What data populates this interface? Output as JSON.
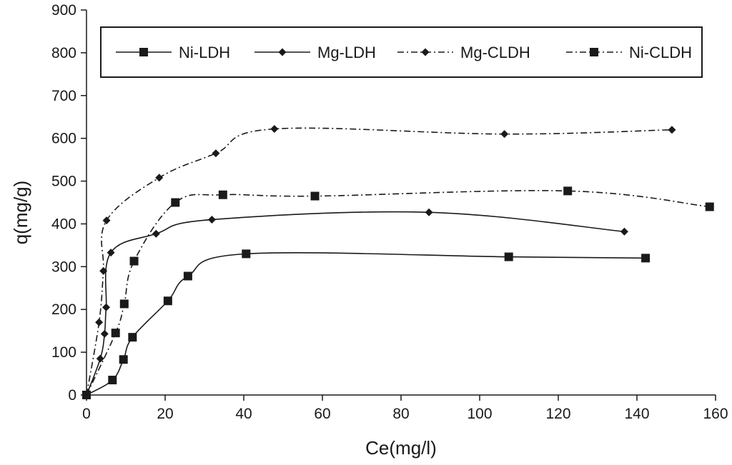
{
  "chart_data": {
    "type": "line",
    "title": "",
    "xlabel": "Ce(mg/l)",
    "ylabel": "q(mg/g)",
    "xlim": [
      0,
      160
    ],
    "ylim": [
      0,
      900
    ],
    "xticks": [
      0,
      20,
      40,
      60,
      80,
      100,
      120,
      140,
      160
    ],
    "yticks": [
      0,
      100,
      200,
      300,
      400,
      500,
      600,
      700,
      800,
      900
    ],
    "grid": false,
    "legend_position": "top",
    "series": [
      {
        "name": "Ni-LDH",
        "line": "solid",
        "marker": "square",
        "color": "#1a1a1a",
        "x": [
          0,
          6.6,
          9.4,
          11.7,
          20.7,
          25.8,
          40.6,
          107.4,
          142.2
        ],
        "y": [
          0,
          35,
          83,
          135,
          220,
          278,
          330,
          323,
          320
        ]
      },
      {
        "name": "Mg-LDH",
        "line": "solid",
        "marker": "diamond",
        "color": "#1a1a1a",
        "x": [
          0,
          3.5,
          4.6,
          5.0,
          6.2,
          17.7,
          31.9,
          87.1,
          136.8
        ],
        "y": [
          0,
          85,
          143,
          205,
          333,
          377,
          410,
          427,
          382
        ]
      },
      {
        "name": "Mg-CLDH",
        "line": "dashdot",
        "marker": "diamond",
        "color": "#1a1a1a",
        "x": [
          0,
          3.2,
          4.3,
          5.1,
          18.5,
          32.9,
          47.8,
          106.3,
          148.9
        ],
        "y": [
          0,
          170,
          290,
          408,
          508,
          565,
          622,
          610,
          620
        ]
      },
      {
        "name": "Ni-CLDH",
        "line": "dashdot",
        "marker": "square",
        "color": "#1a1a1a",
        "x": [
          0,
          7.4,
          9.6,
          12.1,
          22.6,
          34.7,
          58.1,
          122.4,
          158.5
        ],
        "y": [
          0,
          145,
          213,
          313,
          450,
          468,
          465,
          477,
          440
        ]
      }
    ]
  }
}
